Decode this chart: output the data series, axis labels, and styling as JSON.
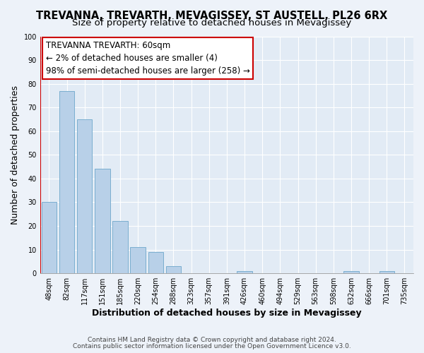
{
  "title": "TREVANNA, TREVARTH, MEVAGISSEY, ST AUSTELL, PL26 6RX",
  "subtitle": "Size of property relative to detached houses in Mevagissey",
  "xlabel": "Distribution of detached houses by size in Mevagissey",
  "ylabel": "Number of detached properties",
  "bar_labels": [
    "48sqm",
    "82sqm",
    "117sqm",
    "151sqm",
    "185sqm",
    "220sqm",
    "254sqm",
    "288sqm",
    "323sqm",
    "357sqm",
    "391sqm",
    "426sqm",
    "460sqm",
    "494sqm",
    "529sqm",
    "563sqm",
    "598sqm",
    "632sqm",
    "666sqm",
    "701sqm",
    "735sqm"
  ],
  "bar_values": [
    30,
    77,
    65,
    44,
    22,
    11,
    9,
    3,
    0,
    0,
    0,
    1,
    0,
    0,
    0,
    0,
    0,
    1,
    0,
    1,
    0
  ],
  "bar_color": "#b8d0e8",
  "bar_edge_color": "#7aaed0",
  "annotation_title": "TREVANNA TREVARTH: 60sqm",
  "annotation_line1": "← 2% of detached houses are smaller (4)",
  "annotation_line2": "98% of semi-detached houses are larger (258) →",
  "annotation_box_color": "#ffffff",
  "annotation_box_edge_color": "#cc0000",
  "red_line_color": "#cc0000",
  "ylim": [
    0,
    100
  ],
  "yticks": [
    0,
    10,
    20,
    30,
    40,
    50,
    60,
    70,
    80,
    90,
    100
  ],
  "footer1": "Contains HM Land Registry data © Crown copyright and database right 2024.",
  "footer2": "Contains public sector information licensed under the Open Government Licence v3.0.",
  "bg_color": "#edf2f9",
  "plot_bg_color": "#e2ebf5",
  "grid_color": "#ffffff",
  "title_fontsize": 10.5,
  "subtitle_fontsize": 9.5,
  "axis_label_fontsize": 9,
  "tick_fontsize": 7,
  "annotation_fontsize": 8.5,
  "footer_fontsize": 6.5
}
